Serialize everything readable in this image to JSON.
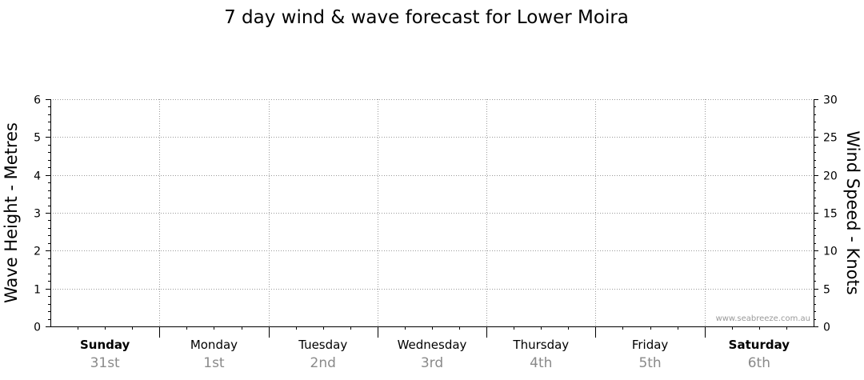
{
  "chart_data": {
    "type": "line",
    "title": "7 day wind & wave forecast for Lower Moira",
    "ylabel_left": "Wave Height - Metres",
    "ylabel_right": "Wind Speed - Knots",
    "ylim_left": [
      0,
      6
    ],
    "ylim_right": [
      0,
      30
    ],
    "yticks_left": [
      "0",
      "1",
      "2",
      "3",
      "4",
      "5",
      "6"
    ],
    "yticks_right": [
      "0",
      "5",
      "10",
      "15",
      "20",
      "25",
      "30"
    ],
    "days": [
      {
        "name": "Sunday",
        "date": "31st",
        "weekend": true
      },
      {
        "name": "Monday",
        "date": "1st",
        "weekend": false
      },
      {
        "name": "Tuesday",
        "date": "2nd",
        "weekend": false
      },
      {
        "name": "Wednesday",
        "date": "3rd",
        "weekend": false
      },
      {
        "name": "Thursday",
        "date": "4th",
        "weekend": false
      },
      {
        "name": "Friday",
        "date": "5th",
        "weekend": false
      },
      {
        "name": "Saturday",
        "date": "6th",
        "weekend": true
      }
    ],
    "series": [],
    "grid": true,
    "watermark": "www.seabreeze.com.au"
  }
}
